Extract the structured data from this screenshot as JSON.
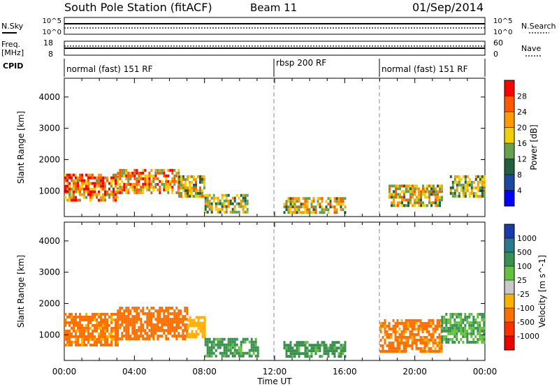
{
  "header": {
    "station": "South Pole Station (fitACF)",
    "beam": "Beam 11",
    "date": "01/Sep/2014"
  },
  "noise_panel": {
    "left_label": "N.Sky",
    "left_ticks": [
      "10^5",
      "10^0"
    ],
    "right_label": "N.Search",
    "right_ticks": [
      "10^5",
      "10^0"
    ]
  },
  "freq_panel": {
    "left_label_1": "Freq.",
    "left_label_2": "[MHz]",
    "left_ticks": [
      "18",
      "8"
    ],
    "right_label": "Nave",
    "right_ticks": [
      "60",
      "0"
    ]
  },
  "cpid_panel": {
    "label": "CPID",
    "segments": [
      {
        "start_hour": 0,
        "text": "normal (fast) 151 RF"
      },
      {
        "start_hour": 12,
        "text": "rbsp 200 RF"
      },
      {
        "start_hour": 18,
        "text": "normal (fast) 151 RF"
      }
    ]
  },
  "x_axis": {
    "label": "Time UT",
    "ticks": [
      "00:00",
      "04:00",
      "08:00",
      "12:00",
      "16:00",
      "20:00",
      "00:00"
    ]
  },
  "chart_data": [
    {
      "type": "heatmap",
      "panel": "power",
      "ylabel": "Slant Range [km]",
      "xlim": [
        0,
        24
      ],
      "ylim": [
        180,
        4600
      ],
      "yticks": [
        "1000",
        "2000",
        "3000",
        "4000"
      ],
      "colorbar": {
        "label": "Power [dB]",
        "ticks": [
          "28",
          "24",
          "20",
          "16",
          "12",
          "8",
          "4"
        ],
        "colors": [
          "#ff0000",
          "#ff5a00",
          "#ff9a00",
          "#f0d000",
          "#66a050",
          "#206040",
          "#1a4aa0",
          "#0000ff"
        ]
      },
      "regions": [
        {
          "t0": 0.0,
          "t1": 3.0,
          "r0": 700,
          "r1": 1550,
          "level": 24
        },
        {
          "t0": 3.0,
          "t1": 6.5,
          "r0": 900,
          "r1": 1700,
          "level": 22
        },
        {
          "t0": 6.5,
          "t1": 8.0,
          "r0": 800,
          "r1": 1500,
          "level": 18
        },
        {
          "t0": 8.0,
          "t1": 10.5,
          "r0": 300,
          "r1": 900,
          "level": 16
        },
        {
          "t0": 12.5,
          "t1": 16.0,
          "r0": 300,
          "r1": 800,
          "level": 18
        },
        {
          "t0": 18.5,
          "t1": 21.5,
          "r0": 500,
          "r1": 1200,
          "level": 18
        },
        {
          "t0": 22.0,
          "t1": 24.0,
          "r0": 800,
          "r1": 1500,
          "level": 16
        }
      ]
    },
    {
      "type": "heatmap",
      "panel": "velocity",
      "ylabel": "Slant Range [km]",
      "xlim": [
        0,
        24
      ],
      "ylim": [
        180,
        4600
      ],
      "yticks": [
        "1000",
        "2000",
        "3000",
        "4000"
      ],
      "colorbar": {
        "label": "Velocity [m s^-1]",
        "ticks": [
          "1000",
          "500",
          "100",
          "25",
          "-25",
          "-100",
          "-500",
          "-1000"
        ],
        "colors": [
          "#1a3ca8",
          "#2a7a8a",
          "#3a9050",
          "#66c040",
          "#c8c8c8",
          "#ffb000",
          "#ff7000",
          "#ff3000",
          "#ee0000"
        ]
      },
      "regions": [
        {
          "t0": 0.0,
          "t1": 3.0,
          "r0": 700,
          "r1": 1700,
          "level": -150
        },
        {
          "t0": 3.0,
          "t1": 7.0,
          "r0": 900,
          "r1": 1900,
          "level": -200
        },
        {
          "t0": 7.0,
          "t1": 8.0,
          "r0": 900,
          "r1": 1600,
          "level": -50
        },
        {
          "t0": 8.0,
          "t1": 11.0,
          "r0": 300,
          "r1": 900,
          "level": 150
        },
        {
          "t0": 12.5,
          "t1": 16.0,
          "r0": 300,
          "r1": 800,
          "level": 150
        },
        {
          "t0": 18.0,
          "t1": 21.5,
          "r0": 500,
          "r1": 1500,
          "level": -150
        },
        {
          "t0": 21.5,
          "t1": 24.0,
          "r0": 800,
          "r1": 1700,
          "level": 100
        }
      ]
    }
  ]
}
